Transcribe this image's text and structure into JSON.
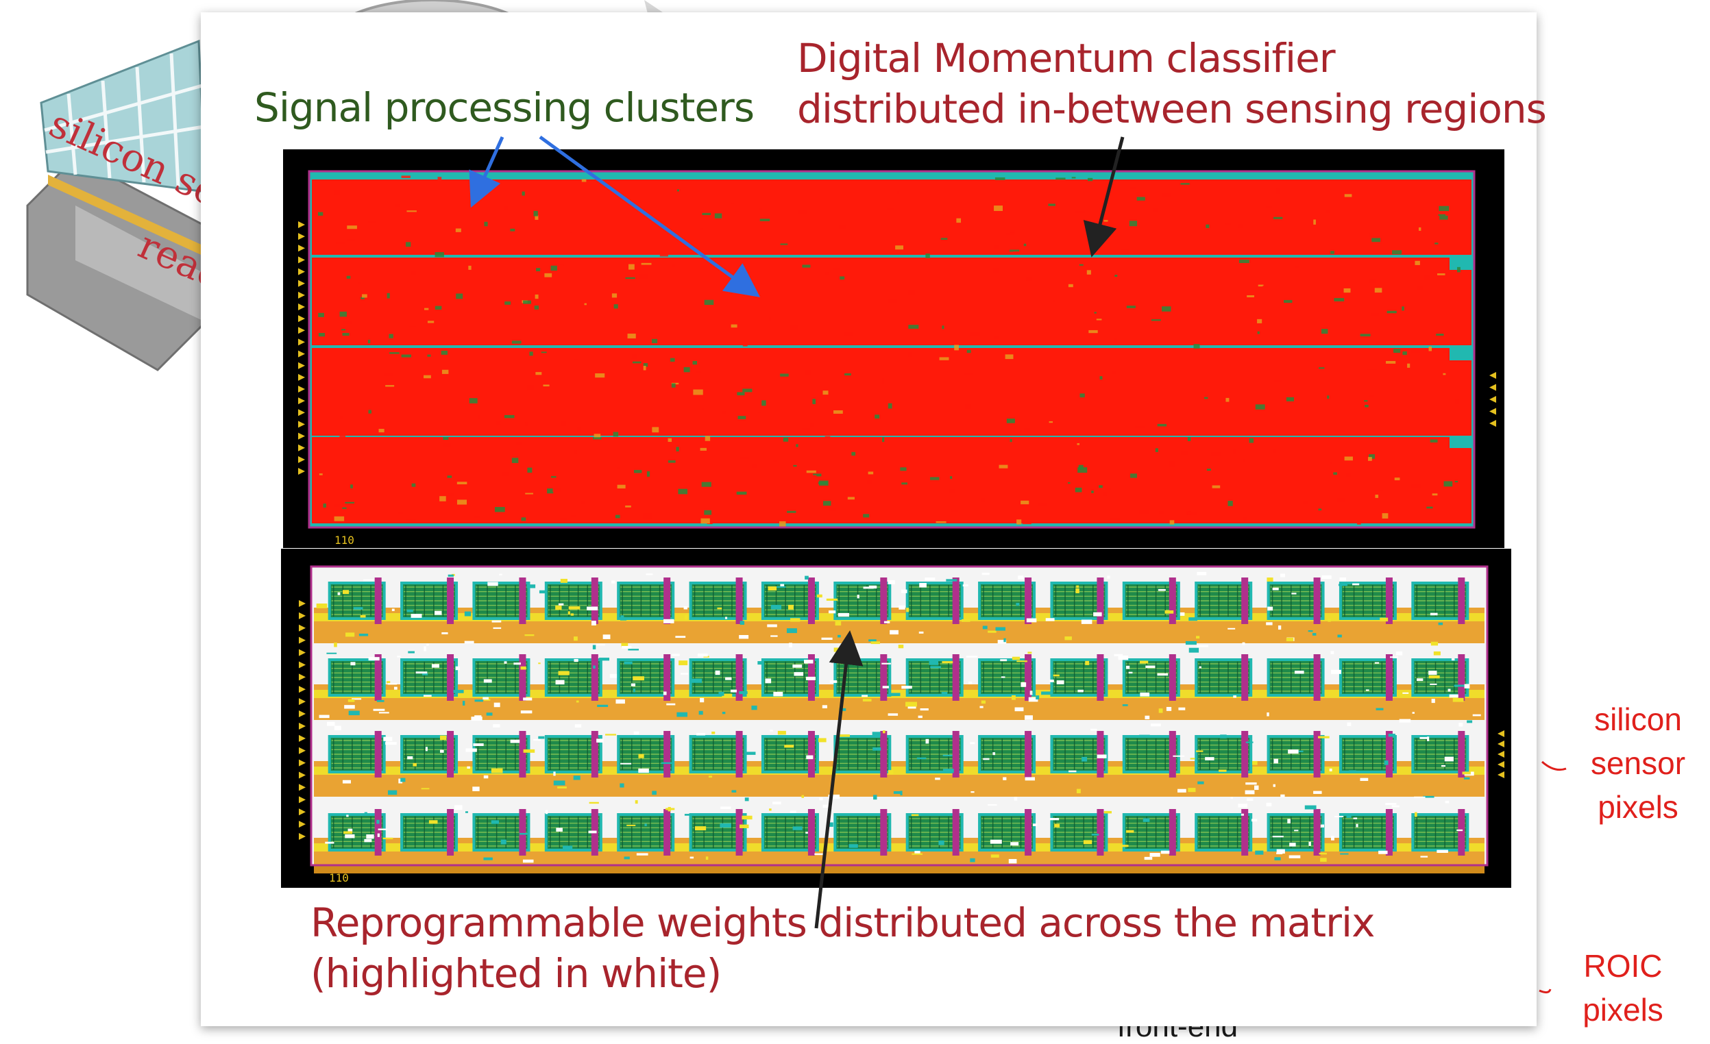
{
  "background": {
    "sensor_stack_text": {
      "line1": "silicon se",
      "line2": "reac"
    },
    "side_notes": {
      "silicon_sensor_pixels": [
        "silicon",
        "sensor",
        "pixels"
      ],
      "roic_pixels": [
        "ROIC",
        "pixels"
      ],
      "front_end": "front-end"
    }
  },
  "card": {
    "labels": {
      "signal_processing": "Signal processing clusters",
      "momentum_classifier": [
        "Digital Momentum classifier",
        "distributed in-between sensing regions"
      ],
      "reprogrammable_weights": [
        "Reprogrammable weights distributed across the matrix",
        "(highlighted in white)"
      ]
    },
    "panels": {
      "top": {
        "cluster_columns": 16,
        "cluster_rows": 4,
        "pad_label": "110"
      },
      "bottom": {
        "cluster_columns": 16,
        "cluster_rows": 4,
        "pad_label": "110"
      }
    },
    "colors": {
      "classifier_red": "#ff1a0a",
      "cluster_green": "#1f8a4a",
      "cluster_cyan": "#21b8b0",
      "weights_white": "#ffffff",
      "routing_orange": "#e89a1e",
      "routing_magenta": "#b0308c",
      "label_red": "#a8242c",
      "label_green": "#2f5a1f",
      "note_red": "#e0201c"
    }
  }
}
